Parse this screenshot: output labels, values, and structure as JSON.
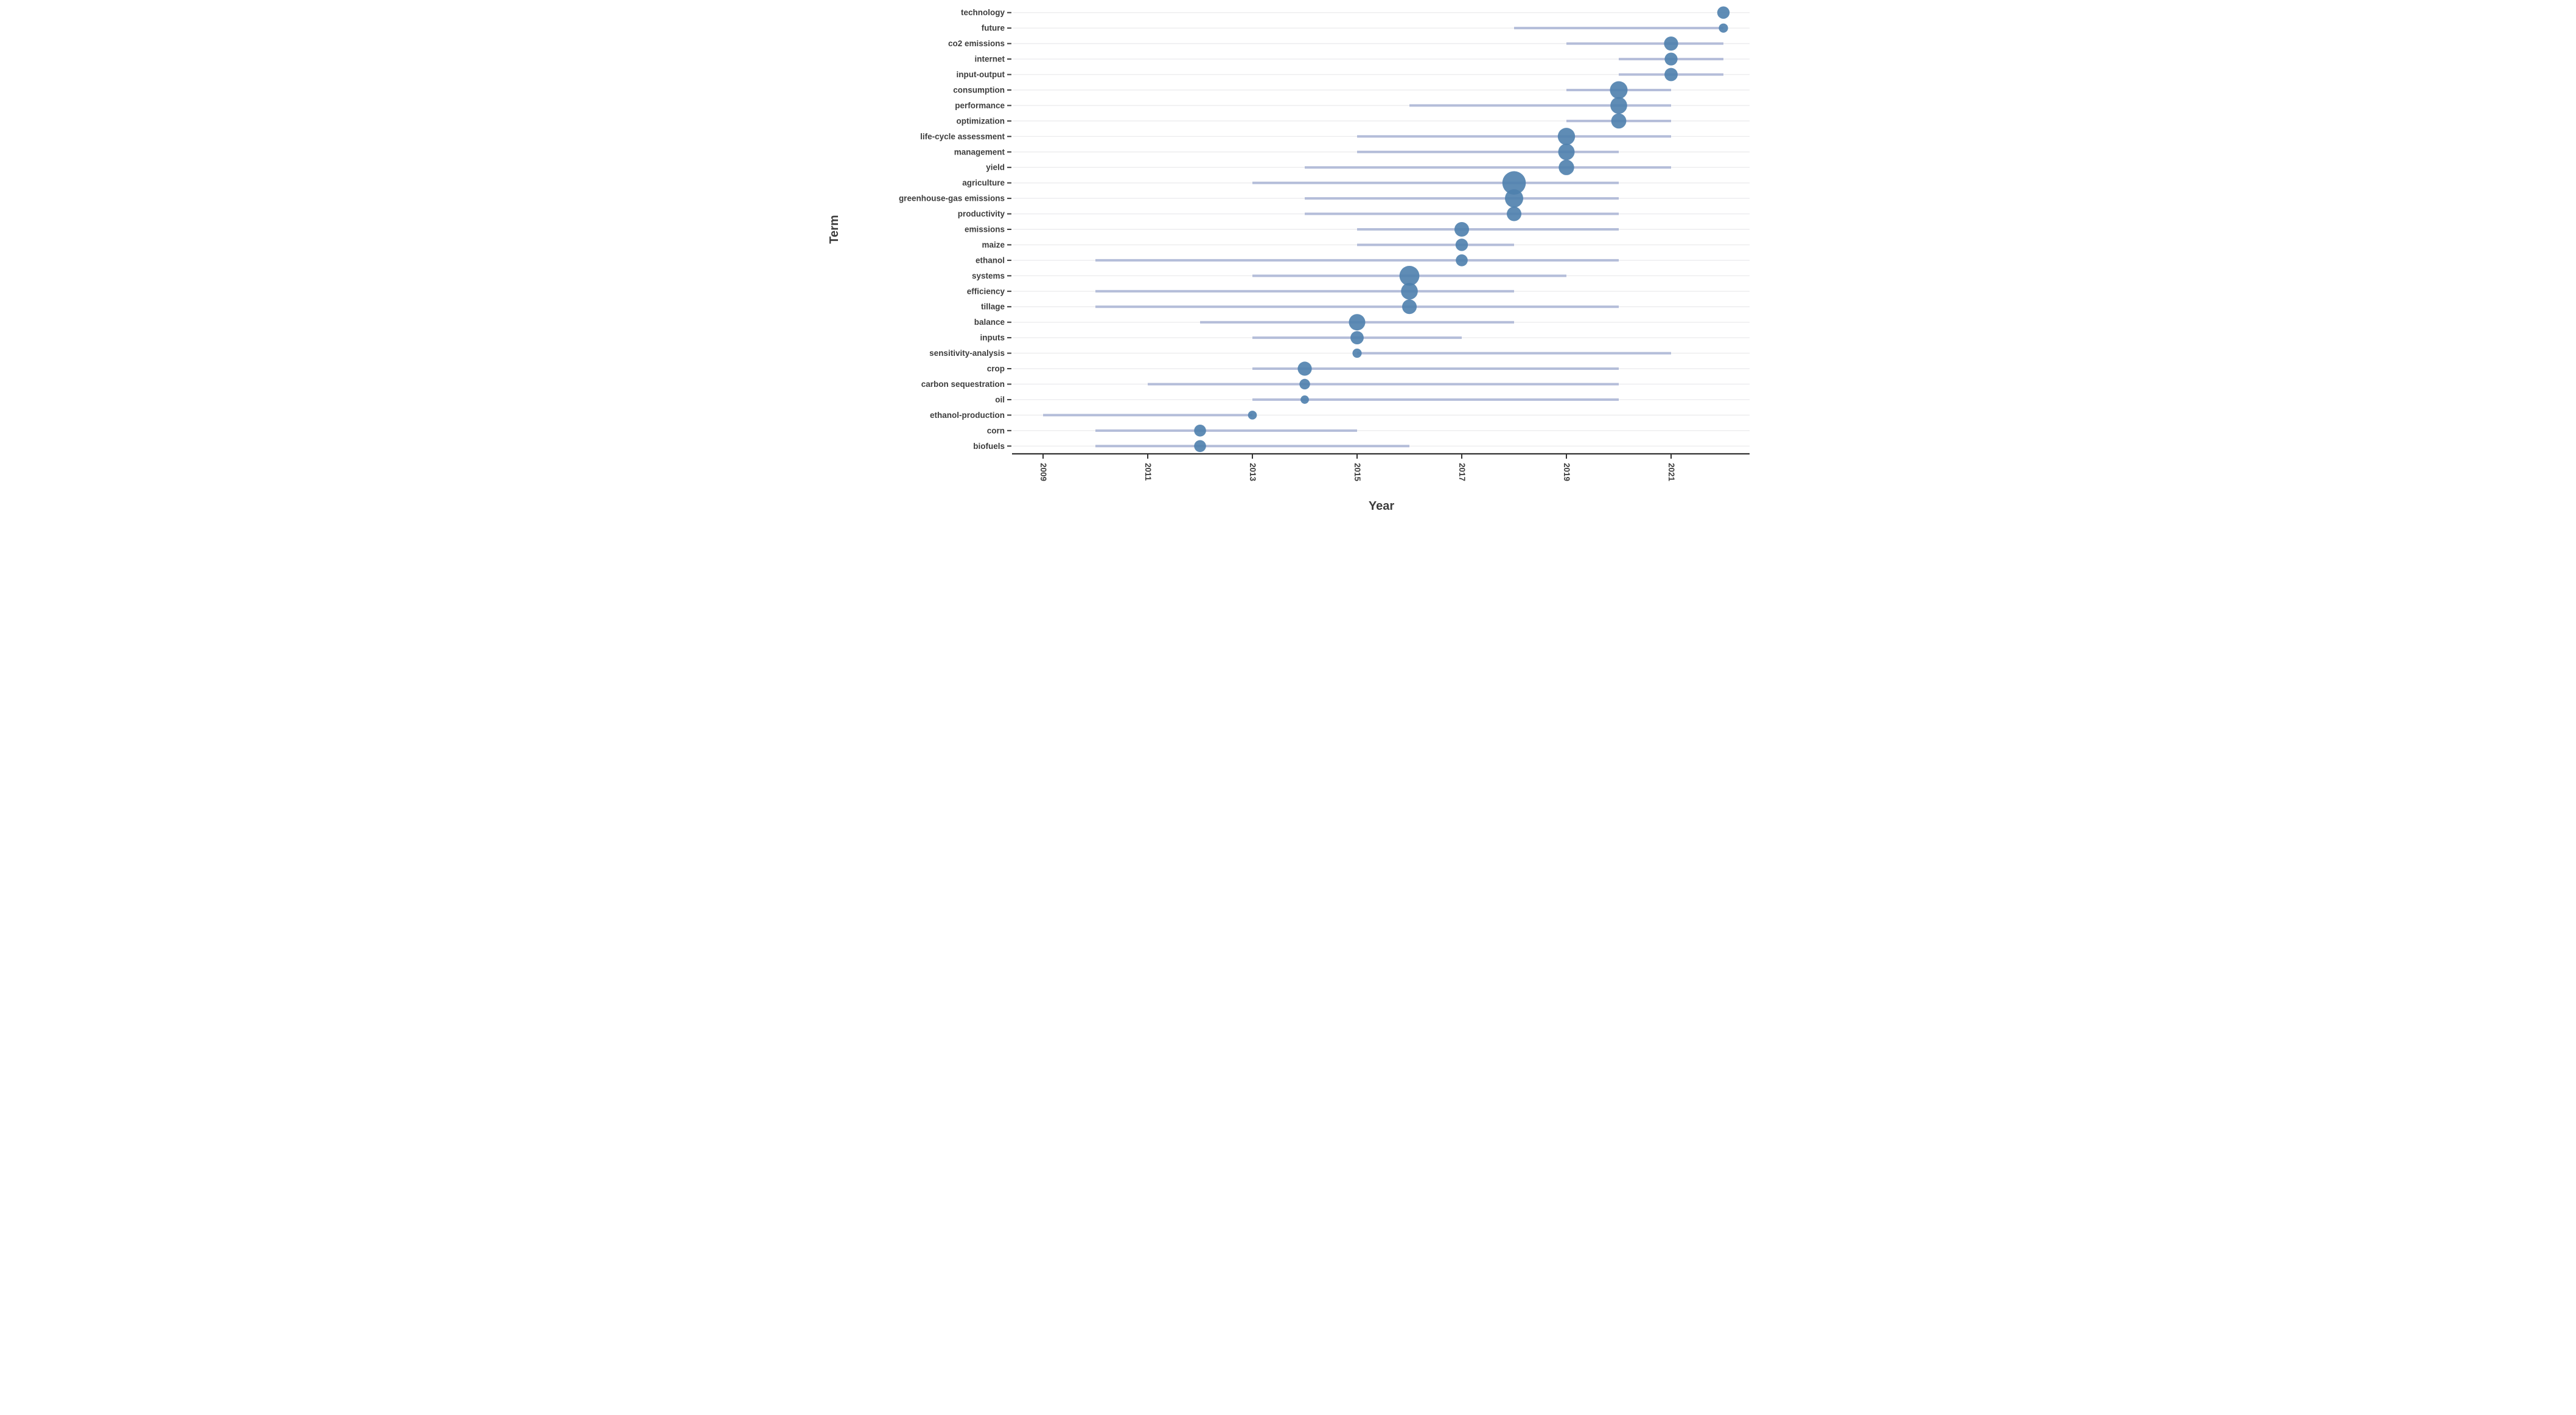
{
  "page": {
    "background": "#ffffff"
  },
  "chart_data": {
    "type": "scatter",
    "variant": "trend-topics-bubble-timeline",
    "title": "",
    "xlabel": "Year",
    "ylabel": "Term",
    "legend": "none",
    "grid": "horizontal",
    "x_ticks": [
      "2009",
      "2011",
      "2013",
      "2015",
      "2017",
      "2019",
      "2021"
    ],
    "x_tick_years": [
      2009,
      2011,
      2013,
      2015,
      2017,
      2019,
      2021
    ],
    "xlim": [
      2008.43,
      2022.5
    ],
    "colors": {
      "bubble": "#4e80ad",
      "range_line": "#b4bdd9",
      "gridline": "#ececee",
      "axis_line": "#333333",
      "tick_text": "#3d3d3d",
      "axis_title_text": "#3d3d3d"
    },
    "series": [
      {
        "term": "technology",
        "year_q1": 2022,
        "year_peak": 2022,
        "year_q3": 2022,
        "size": 10.2
      },
      {
        "term": "future",
        "year_q1": 2018,
        "year_peak": 2022,
        "year_q3": 2022,
        "size": 7.6
      },
      {
        "term": "co2 emissions",
        "year_q1": 2019,
        "year_peak": 2021,
        "year_q3": 2022,
        "size": 11.6
      },
      {
        "term": "internet",
        "year_q1": 2020,
        "year_peak": 2021,
        "year_q3": 2022,
        "size": 10.6
      },
      {
        "term": "input-output",
        "year_q1": 2020,
        "year_peak": 2021,
        "year_q3": 2022,
        "size": 10.9
      },
      {
        "term": "consumption",
        "year_q1": 2019,
        "year_peak": 2020,
        "year_q3": 2021,
        "size": 14.5
      },
      {
        "term": "performance",
        "year_q1": 2016,
        "year_peak": 2020,
        "year_q3": 2021,
        "size": 13.8
      },
      {
        "term": "optimization",
        "year_q1": 2019,
        "year_peak": 2020,
        "year_q3": 2021,
        "size": 12.4
      },
      {
        "term": "life-cycle assessment",
        "year_q1": 2015,
        "year_peak": 2019,
        "year_q3": 2021,
        "size": 14.2
      },
      {
        "term": "management",
        "year_q1": 2015,
        "year_peak": 2019,
        "year_q3": 2020,
        "size": 13.5
      },
      {
        "term": "yield",
        "year_q1": 2014,
        "year_peak": 2019,
        "year_q3": 2021,
        "size": 12.7
      },
      {
        "term": "agriculture",
        "year_q1": 2013,
        "year_peak": 2018,
        "year_q3": 2020,
        "size": 19.3
      },
      {
        "term": "greenhouse-gas emissions",
        "year_q1": 2014,
        "year_peak": 2018,
        "year_q3": 2020,
        "size": 15.0
      },
      {
        "term": "productivity",
        "year_q1": 2014,
        "year_peak": 2018,
        "year_q3": 2020,
        "size": 12.0
      },
      {
        "term": "emissions",
        "year_q1": 2015,
        "year_peak": 2017,
        "year_q3": 2020,
        "size": 12.0
      },
      {
        "term": "maize",
        "year_q1": 2015,
        "year_peak": 2017,
        "year_q3": 2018,
        "size": 10.2
      },
      {
        "term": "ethanol",
        "year_q1": 2010,
        "year_peak": 2017,
        "year_q3": 2020,
        "size": 9.8
      },
      {
        "term": "systems",
        "year_q1": 2013,
        "year_peak": 2016,
        "year_q3": 2019,
        "size": 16.4
      },
      {
        "term": "efficiency",
        "year_q1": 2010,
        "year_peak": 2016,
        "year_q3": 2018,
        "size": 13.8
      },
      {
        "term": "tillage",
        "year_q1": 2010,
        "year_peak": 2016,
        "year_q3": 2020,
        "size": 12.0
      },
      {
        "term": "balance",
        "year_q1": 2012,
        "year_peak": 2015,
        "year_q3": 2018,
        "size": 13.5
      },
      {
        "term": "inputs",
        "year_q1": 2013,
        "year_peak": 2015,
        "year_q3": 2017,
        "size": 10.9
      },
      {
        "term": "sensitivity-analysis",
        "year_q1": 2015,
        "year_peak": 2015,
        "year_q3": 2021,
        "size": 7.6
      },
      {
        "term": "crop",
        "year_q1": 2013,
        "year_peak": 2014,
        "year_q3": 2020,
        "size": 11.6
      },
      {
        "term": "carbon sequestration",
        "year_q1": 2011,
        "year_peak": 2014,
        "year_q3": 2020,
        "size": 8.7
      },
      {
        "term": "oil",
        "year_q1": 2013,
        "year_peak": 2014,
        "year_q3": 2020,
        "size": 6.9
      },
      {
        "term": "ethanol-production",
        "year_q1": 2009,
        "year_peak": 2013,
        "year_q3": 2013,
        "size": 7.3
      },
      {
        "term": "corn",
        "year_q1": 2010,
        "year_peak": 2012,
        "year_q3": 2015,
        "size": 9.8
      },
      {
        "term": "biofuels",
        "year_q1": 2010,
        "year_peak": 2012,
        "year_q3": 2016,
        "size": 9.8
      }
    ]
  }
}
